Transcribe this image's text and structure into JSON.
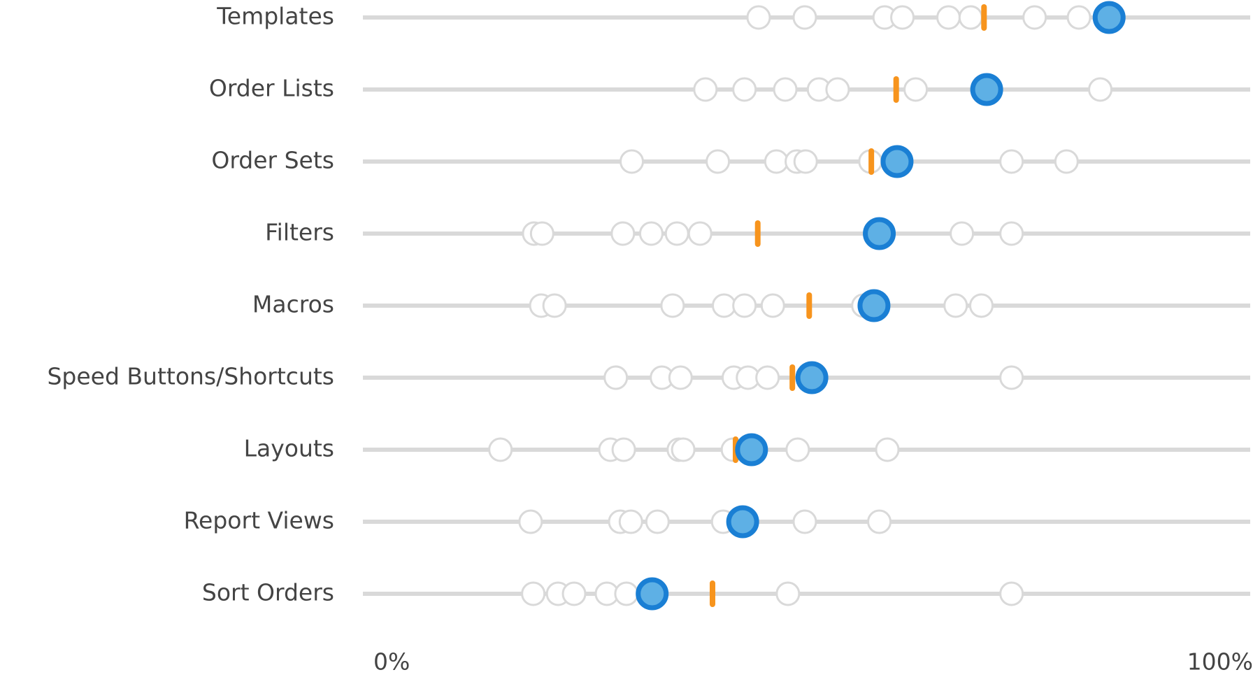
{
  "chart_data": {
    "type": "dot-strip",
    "categories": [
      "Templates",
      "Order Lists",
      "Order Sets",
      "Filters",
      "Macros",
      "Speed Buttons/Shortcuts",
      "Layouts",
      "Report Views",
      "Sort Orders"
    ],
    "peers": [
      [
        44.6,
        49.8,
        58.8,
        60.8,
        66.0,
        68.5,
        75.7,
        80.7
      ],
      [
        38.6,
        43.0,
        47.6,
        51.4,
        53.5,
        62.3,
        83.1
      ],
      [
        30.3,
        40.0,
        46.6,
        48.9,
        49.9,
        57.2,
        73.1,
        79.3
      ],
      [
        19.3,
        20.2,
        29.3,
        32.5,
        35.4,
        38.0,
        67.5,
        73.1
      ],
      [
        20.1,
        21.6,
        34.9,
        40.7,
        43.0,
        46.2,
        56.4,
        66.8,
        69.7
      ],
      [
        28.5,
        33.7,
        35.8,
        41.8,
        43.4,
        45.6,
        73.1
      ],
      [
        15.5,
        27.9,
        29.4,
        35.6,
        36.1,
        41.7,
        49.0,
        59.1
      ],
      [
        18.9,
        29.0,
        30.2,
        33.2,
        40.6,
        49.8,
        58.2
      ],
      [
        19.2,
        22.0,
        23.8,
        27.5,
        29.7,
        47.9,
        73.1
      ]
    ],
    "average": [
      70.0,
      60.1,
      57.3,
      44.5,
      50.3,
      48.4,
      42.0,
      41.9,
      39.4
    ],
    "highlight": [
      84.1,
      70.3,
      60.2,
      58.2,
      57.6,
      50.6,
      43.8,
      42.8,
      32.6
    ],
    "peer_color": "#d9d9d9",
    "average_color": "#f7941d",
    "highlight_color": "#1a7fd4",
    "highlight_fill": "#5eb0e5",
    "xlim": [
      0,
      100
    ],
    "xticks": [
      {
        "value": 0,
        "label": "0%"
      },
      {
        "value": 100,
        "label": "100%"
      }
    ]
  }
}
